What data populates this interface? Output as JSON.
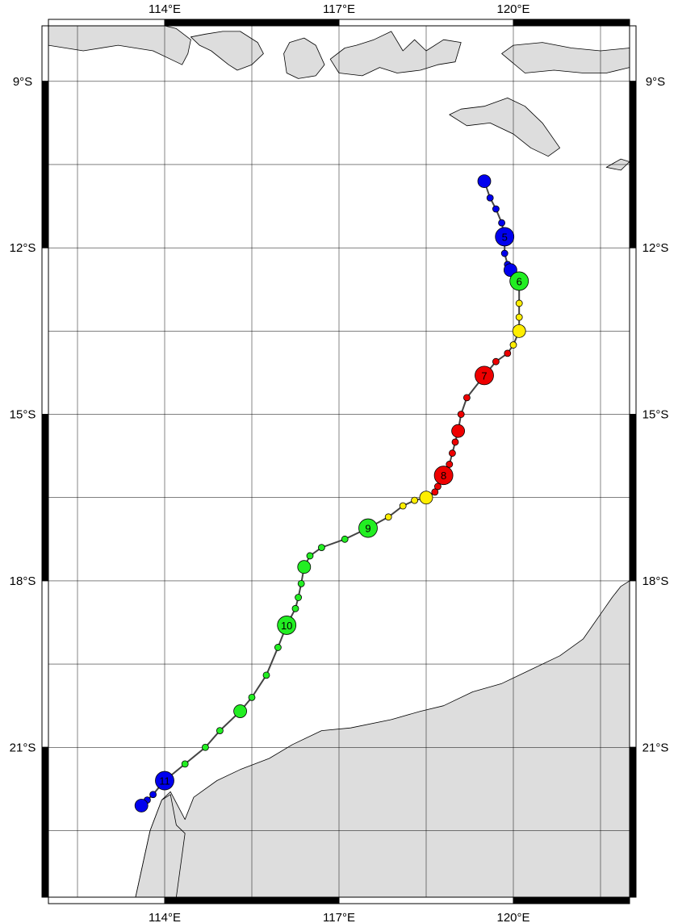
{
  "map": {
    "lon_range": [
      112,
      122
    ],
    "lat_range": [
      -23.7,
      -8
    ],
    "colors": {
      "land": "#dddddd",
      "coast": "#000000",
      "grid": "#000000",
      "track": "#444444",
      "blue": "#0000ee",
      "green": "#22ee22",
      "yellow": "#ffee00",
      "red": "#ee0000"
    },
    "lon_ticks": [
      {
        "value": 114,
        "label": "114°E"
      },
      {
        "value": 117,
        "label": "117°E"
      },
      {
        "value": 120,
        "label": "120°E"
      }
    ],
    "lat_ticks": [
      {
        "value": -9,
        "label": "9°S"
      },
      {
        "value": -12,
        "label": "12°S"
      },
      {
        "value": -15,
        "label": "15°S"
      },
      {
        "value": -18,
        "label": "18°S"
      },
      {
        "value": -21,
        "label": "21°S"
      }
    ],
    "grid_lons": [
      112.5,
      114,
      115.5,
      117,
      118.5,
      120,
      121.5
    ],
    "grid_lats": [
      -9,
      -10.5,
      -12,
      -13.5,
      -15,
      -16.5,
      -18,
      -19.5,
      -21,
      -22.5
    ],
    "track": [
      {
        "lon": 119.5,
        "lat": -10.8,
        "size": "large",
        "color": "blue"
      },
      {
        "lon": 119.6,
        "lat": -11.1,
        "size": "small",
        "color": "blue"
      },
      {
        "lon": 119.7,
        "lat": -11.3,
        "size": "small",
        "color": "blue"
      },
      {
        "lon": 119.8,
        "lat": -11.55,
        "size": "small",
        "color": "blue"
      },
      {
        "lon": 119.85,
        "lat": -11.8,
        "size": "xlarge",
        "color": "blue",
        "label": "5"
      },
      {
        "lon": 119.85,
        "lat": -12.1,
        "size": "small",
        "color": "blue"
      },
      {
        "lon": 119.9,
        "lat": -12.3,
        "size": "small",
        "color": "blue"
      },
      {
        "lon": 119.95,
        "lat": -12.4,
        "size": "large",
        "color": "blue"
      },
      {
        "lon": 120.1,
        "lat": -12.6,
        "size": "xlarge",
        "color": "green",
        "label": "6"
      },
      {
        "lon": 120.1,
        "lat": -13.0,
        "size": "small",
        "color": "yellow"
      },
      {
        "lon": 120.1,
        "lat": -13.25,
        "size": "small",
        "color": "yellow"
      },
      {
        "lon": 120.1,
        "lat": -13.5,
        "size": "large",
        "color": "yellow"
      },
      {
        "lon": 120.0,
        "lat": -13.75,
        "size": "small",
        "color": "yellow"
      },
      {
        "lon": 119.9,
        "lat": -13.9,
        "size": "small",
        "color": "red"
      },
      {
        "lon": 119.7,
        "lat": -14.05,
        "size": "small",
        "color": "red"
      },
      {
        "lon": 119.5,
        "lat": -14.3,
        "size": "xlarge",
        "color": "red",
        "label": "7"
      },
      {
        "lon": 119.2,
        "lat": -14.7,
        "size": "small",
        "color": "red"
      },
      {
        "lon": 119.1,
        "lat": -15.0,
        "size": "small",
        "color": "red"
      },
      {
        "lon": 119.05,
        "lat": -15.3,
        "size": "large",
        "color": "red"
      },
      {
        "lon": 119.0,
        "lat": -15.5,
        "size": "small",
        "color": "red"
      },
      {
        "lon": 118.95,
        "lat": -15.7,
        "size": "small",
        "color": "red"
      },
      {
        "lon": 118.9,
        "lat": -15.9,
        "size": "small",
        "color": "red"
      },
      {
        "lon": 118.8,
        "lat": -16.1,
        "size": "xlarge",
        "color": "red",
        "label": "8"
      },
      {
        "lon": 118.7,
        "lat": -16.3,
        "size": "small",
        "color": "red"
      },
      {
        "lon": 118.65,
        "lat": -16.4,
        "size": "small",
        "color": "red"
      },
      {
        "lon": 118.5,
        "lat": -16.5,
        "size": "large",
        "color": "yellow"
      },
      {
        "lon": 118.3,
        "lat": -16.55,
        "size": "small",
        "color": "yellow"
      },
      {
        "lon": 118.1,
        "lat": -16.65,
        "size": "small",
        "color": "yellow"
      },
      {
        "lon": 117.85,
        "lat": -16.85,
        "size": "small",
        "color": "yellow"
      },
      {
        "lon": 117.5,
        "lat": -17.05,
        "size": "xlarge",
        "color": "green",
        "label": "9"
      },
      {
        "lon": 117.1,
        "lat": -17.25,
        "size": "small",
        "color": "green"
      },
      {
        "lon": 116.7,
        "lat": -17.4,
        "size": "small",
        "color": "green"
      },
      {
        "lon": 116.5,
        "lat": -17.55,
        "size": "small",
        "color": "green"
      },
      {
        "lon": 116.4,
        "lat": -17.75,
        "size": "large",
        "color": "green"
      },
      {
        "lon": 116.35,
        "lat": -18.05,
        "size": "small",
        "color": "green"
      },
      {
        "lon": 116.3,
        "lat": -18.3,
        "size": "small",
        "color": "green"
      },
      {
        "lon": 116.25,
        "lat": -18.5,
        "size": "small",
        "color": "green"
      },
      {
        "lon": 116.1,
        "lat": -18.8,
        "size": "xlarge",
        "color": "green",
        "label": "10"
      },
      {
        "lon": 115.95,
        "lat": -19.2,
        "size": "small",
        "color": "green"
      },
      {
        "lon": 115.75,
        "lat": -19.7,
        "size": "small",
        "color": "green"
      },
      {
        "lon": 115.5,
        "lat": -20.1,
        "size": "small",
        "color": "green"
      },
      {
        "lon": 115.3,
        "lat": -20.35,
        "size": "large",
        "color": "green"
      },
      {
        "lon": 114.95,
        "lat": -20.7,
        "size": "small",
        "color": "green"
      },
      {
        "lon": 114.7,
        "lat": -21.0,
        "size": "small",
        "color": "green"
      },
      {
        "lon": 114.35,
        "lat": -21.3,
        "size": "small",
        "color": "green"
      },
      {
        "lon": 114.0,
        "lat": -21.6,
        "size": "xlarge",
        "color": "blue",
        "label": "11"
      },
      {
        "lon": 113.8,
        "lat": -21.85,
        "size": "small",
        "color": "blue"
      },
      {
        "lon": 113.7,
        "lat": -21.95,
        "size": "small",
        "color": "blue"
      },
      {
        "lon": 113.6,
        "lat": -22.05,
        "size": "large",
        "color": "blue"
      }
    ]
  }
}
